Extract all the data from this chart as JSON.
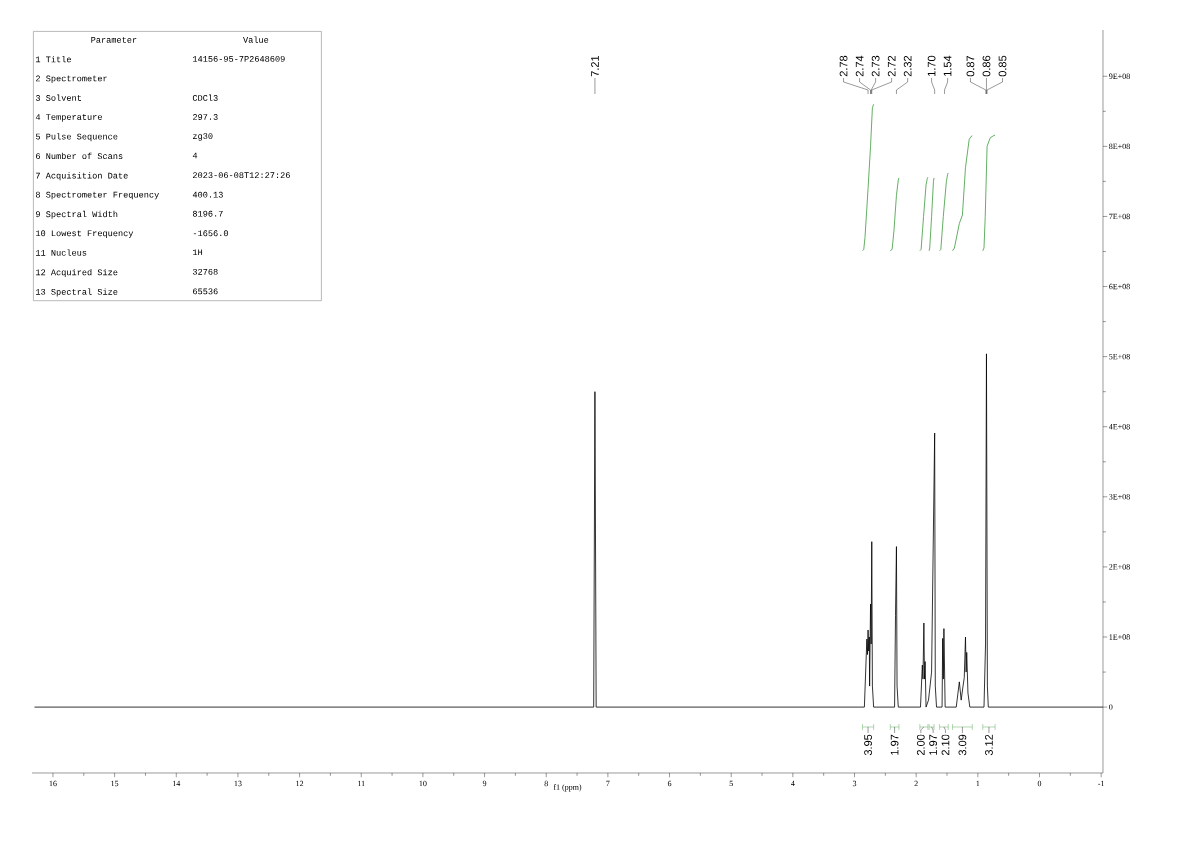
{
  "chart_data": {
    "type": "line",
    "xlabel": "f1 (ppm)",
    "xlim": [
      16.34,
      -1.03
    ],
    "ylim": [
      -94000000,
      966000000
    ],
    "xticks": [
      16,
      15,
      14,
      13,
      12,
      11,
      10,
      9,
      8,
      7,
      6,
      5,
      4,
      3,
      2,
      1,
      0,
      -1
    ],
    "yticks": [
      0,
      {
        "value": 100000000,
        "label": "1E+08"
      },
      {
        "value": 200000000,
        "label": "2E+08"
      },
      {
        "value": 300000000,
        "label": "3E+08"
      },
      {
        "value": 400000000,
        "label": "4E+08"
      },
      {
        "value": 500000000,
        "label": "5E+08"
      },
      {
        "value": 600000000,
        "label": "6E+08"
      },
      {
        "value": 700000000,
        "label": "7E+08"
      },
      {
        "value": 800000000,
        "label": "8E+08"
      },
      {
        "value": 900000000,
        "label": "9E+08"
      }
    ],
    "grid": false,
    "marker": "none",
    "line_style": "solid",
    "series": [
      {
        "color": "#000000",
        "x": [
          16.3,
          7.26,
          7.23,
          7.21,
          7.19,
          7.16,
          2.84,
          2.8,
          2.79,
          2.78,
          2.77,
          2.76,
          2.755,
          2.74,
          2.73,
          2.72,
          2.71,
          2.69,
          2.35,
          2.335,
          2.32,
          2.31,
          2.29,
          1.93,
          1.9,
          1.89,
          1.875,
          1.865,
          1.855,
          1.84,
          1.8,
          1.75,
          1.7,
          1.69,
          1.67,
          1.58,
          1.57,
          1.56,
          1.55,
          1.53,
          1.35,
          1.3,
          1.27,
          1.24,
          1.22,
          1.2,
          1.19,
          1.18,
          1.16,
          1.13,
          0.9,
          0.875,
          0.86,
          0.845,
          0.83,
          -1.03
        ],
        "values": [
          0,
          0,
          0,
          450000000,
          0,
          0,
          0,
          97000000,
          75000000,
          110000000,
          80000000,
          100000000,
          30000000,
          147000000,
          90000000,
          236000000,
          30000000,
          0,
          0,
          131000000,
          229000000,
          30000000,
          0,
          0,
          60000000,
          40000000,
          120000000,
          40000000,
          65000000,
          0,
          10000000,
          50000000,
          391000000,
          30000000,
          0,
          0,
          98000000,
          40000000,
          112000000,
          0,
          0,
          36000000,
          10000000,
          30000000,
          42000000,
          100000000,
          50000000,
          78000000,
          20000000,
          0,
          0,
          90000000,
          504000000,
          30000000,
          0,
          0
        ]
      },
      {
        "color": "#3c9a3c",
        "x": [
          2.87,
          2.85,
          2.83,
          2.78,
          2.74,
          2.71,
          2.69
        ],
        "values": [
          651000000,
          653000000,
          670000000,
          740000000,
          800000000,
          855000000,
          860000000
        ]
      },
      {
        "color": "#3c9a3c",
        "x": [
          2.42,
          2.39,
          2.36,
          2.32,
          2.29,
          2.28
        ],
        "values": [
          651000000,
          653000000,
          680000000,
          730000000,
          752000000,
          755000000
        ]
      },
      {
        "color": "#3c9a3c",
        "x": [
          1.94,
          1.92,
          1.88,
          1.84,
          1.82,
          1.81
        ],
        "values": [
          651000000,
          653000000,
          700000000,
          745000000,
          754000000,
          756000000
        ]
      },
      {
        "color": "#3c9a3c",
        "x": [
          1.79,
          1.78,
          1.75,
          1.72,
          1.71
        ],
        "values": [
          651000000,
          655000000,
          700000000,
          750000000,
          755000000
        ]
      },
      {
        "color": "#3c9a3c",
        "x": [
          1.62,
          1.6,
          1.56,
          1.51,
          1.49,
          1.48
        ],
        "values": [
          651000000,
          653000000,
          700000000,
          750000000,
          760000000,
          762000000
        ]
      },
      {
        "color": "#3c9a3c",
        "x": [
          1.41,
          1.38,
          1.3,
          1.25,
          1.2,
          1.14,
          1.11,
          1.09
        ],
        "values": [
          651000000,
          655000000,
          690000000,
          702000000,
          770000000,
          810000000,
          814000000,
          815000000
        ]
      },
      {
        "color": "#3c9a3c",
        "x": [
          0.92,
          0.9,
          0.88,
          0.85,
          0.8,
          0.75,
          0.72
        ],
        "values": [
          651000000,
          655000000,
          700000000,
          800000000,
          812000000,
          815000000,
          816000000
        ]
      }
    ],
    "annotations": [
      "Parameter",
      "Value",
      "1 Title",
      "14156-95-7P2648609",
      "2 Spectrometer",
      "3 Solvent",
      "CDCl3",
      "4 Temperature",
      "297.3",
      "5 Pulse Sequence",
      "zg30",
      "6 Number of Scans",
      "4",
      "7 Acquisition Date",
      "2023-06-08T12:27:26",
      "8 Spectrometer Frequency",
      "400.13",
      "9 Spectral Width",
      "8196.7",
      "10 Lowest Frequency",
      "-1656.0",
      "11 Nucleus",
      "1H",
      "12 Acquired Size",
      "32768",
      "13 Spectral Size",
      "65536",
      {
        "text": "7.21",
        "x": 7.21
      },
      {
        "text": "2.78",
        "x": 2.78
      },
      {
        "text": "2.74",
        "x": 2.74
      },
      {
        "text": "2.73",
        "x": 2.73
      },
      {
        "text": "2.72",
        "x": 2.72
      },
      {
        "text": "2.32",
        "x": 2.32
      },
      {
        "text": "1.70",
        "x": 1.7
      },
      {
        "text": "1.54",
        "x": 1.54
      },
      {
        "text": "0.87",
        "x": 0.87
      },
      {
        "text": "0.86",
        "x": 0.86
      },
      {
        "text": "0.85",
        "x": 0.85
      },
      "3.95",
      "1.97",
      "2.00",
      "1.97",
      "2.10",
      "3.09",
      "3.12"
    ]
  }
}
